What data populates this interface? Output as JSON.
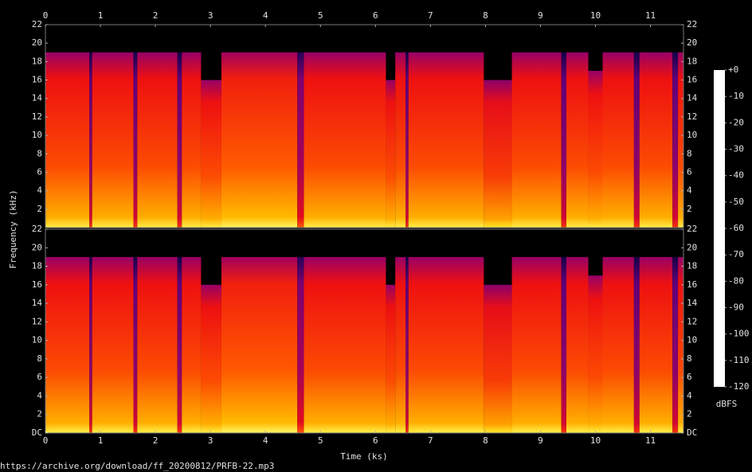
{
  "chart_data": {
    "type": "spectrogram",
    "xlabel": "Time (ks)",
    "ylabel": "Frequency (kHz)",
    "source": "https://archive.org/download/ff_20200812/PRFB-22.mp3",
    "xlim": [
      0,
      11.6
    ],
    "xticks": [
      0,
      1,
      2,
      3,
      4,
      5,
      6,
      7,
      8,
      9,
      10,
      11
    ],
    "panels": [
      {
        "ylim": [
          0,
          22
        ],
        "yticks": [
          2,
          4,
          6,
          8,
          10,
          12,
          14,
          16,
          18,
          20,
          22
        ],
        "bins": [
          0,
          0.8,
          0.85,
          1.6,
          1.67,
          2.4,
          2.48,
          2.83,
          3.2,
          4.58,
          4.7,
          6.19,
          6.36,
          6.55,
          6.6,
          7.97,
          8.48,
          9.38,
          9.47,
          9.87,
          10.13,
          10.7,
          10.8,
          11.4,
          11.5,
          11.6
        ],
        "cutoff": [
          19,
          19,
          19,
          19,
          19,
          19,
          19,
          16,
          19,
          19,
          19,
          16,
          19,
          19,
          19,
          16,
          19,
          19,
          19,
          17,
          19,
          19,
          19,
          19,
          19
        ],
        "level": [
          -50,
          -80,
          -50,
          -80,
          -50,
          -80,
          -50,
          -50,
          -48,
          -75,
          -50,
          -50,
          -50,
          -80,
          -50,
          -52,
          -50,
          -80,
          -50,
          -50,
          -50,
          -80,
          -50,
          -80,
          -50
        ]
      },
      {
        "ylim": [
          0,
          22
        ],
        "yticks": [
          {
            "value": 0,
            "label": "DC"
          },
          2,
          4,
          6,
          8,
          10,
          12,
          14,
          16,
          18,
          20,
          22
        ],
        "bins": [
          0,
          0.8,
          0.85,
          1.6,
          1.67,
          2.4,
          2.48,
          2.83,
          3.2,
          4.58,
          4.7,
          6.19,
          6.36,
          6.55,
          6.6,
          7.97,
          8.48,
          9.38,
          9.47,
          9.87,
          10.13,
          10.7,
          10.8,
          11.4,
          11.5,
          11.6
        ],
        "cutoff": [
          19,
          19,
          19,
          19,
          19,
          19,
          19,
          16,
          19,
          19,
          19,
          16,
          19,
          19,
          19,
          16,
          19,
          19,
          19,
          17,
          19,
          19,
          19,
          19,
          19
        ],
        "level": [
          -50,
          -80,
          -50,
          -80,
          -50,
          -80,
          -50,
          -50,
          -48,
          -75,
          -50,
          -50,
          -50,
          -80,
          -50,
          -52,
          -50,
          -80,
          -50,
          -50,
          -50,
          -80,
          -50,
          -80,
          -50
        ]
      }
    ],
    "colorbar": {
      "label": "dBFS",
      "lim": [
        -120,
        0
      ],
      "ticks": [
        {
          "value": 0,
          "label": "+0"
        },
        -10,
        -20,
        -30,
        -40,
        -50,
        -60,
        -70,
        -80,
        -90,
        -100,
        -110,
        -120
      ],
      "colors": [
        "#ffffff",
        "#ffff90",
        "#ffe000",
        "#ffa000",
        "#ff5a00",
        "#ee1010",
        "#c8003c",
        "#980066",
        "#60007a",
        "#34006c",
        "#140046",
        "#000022",
        "#000000"
      ]
    }
  }
}
